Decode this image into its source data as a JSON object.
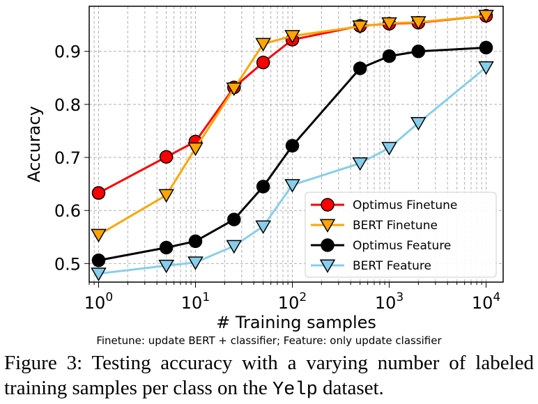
{
  "chart_data": {
    "type": "line",
    "xscale": "log",
    "xlabel": "# Training samples",
    "ylabel": "Accuracy",
    "xlim": [
      0.8,
      15000
    ],
    "ylim": [
      0.465,
      0.985
    ],
    "xticks": [
      {
        "value": 1,
        "base": "10",
        "exp": "0"
      },
      {
        "value": 10,
        "base": "10",
        "exp": "1"
      },
      {
        "value": 100,
        "base": "10",
        "exp": "2"
      },
      {
        "value": 1000,
        "base": "10",
        "exp": "3"
      },
      {
        "value": 10000,
        "base": "10",
        "exp": "4"
      }
    ],
    "yticks": [
      "0.5",
      "0.6",
      "0.7",
      "0.8",
      "0.9"
    ],
    "grid": true,
    "legend_position": "lower-right",
    "series": [
      {
        "name": "Optimus Finetune",
        "color": "#ff0000",
        "marker": "circle",
        "x": [
          1,
          5,
          10,
          25,
          50,
          100,
          500,
          1000,
          2000,
          10000
        ],
        "y": [
          0.633,
          0.701,
          0.73,
          0.832,
          0.879,
          0.922,
          0.948,
          0.952,
          0.954,
          0.967
        ]
      },
      {
        "name": "BERT Finetune",
        "color": "#ffa500",
        "marker": "triangle-down",
        "x": [
          1,
          5,
          10,
          25,
          50,
          100,
          500,
          1000,
          2000,
          10000
        ],
        "y": [
          0.554,
          0.629,
          0.717,
          0.83,
          0.914,
          0.929,
          0.947,
          0.953,
          0.955,
          0.967
        ]
      },
      {
        "name": "Optimus Feature",
        "color": "#000000",
        "marker": "circle",
        "x": [
          1,
          5,
          10,
          25,
          50,
          100,
          500,
          1000,
          2000,
          10000
        ],
        "y": [
          0.506,
          0.53,
          0.542,
          0.583,
          0.645,
          0.722,
          0.868,
          0.891,
          0.9,
          0.907
        ]
      },
      {
        "name": "BERT Feature",
        "color": "#87ceeb",
        "marker": "triangle-down",
        "x": [
          1,
          5,
          10,
          25,
          50,
          100,
          500,
          1000,
          2000,
          10000
        ],
        "y": [
          0.481,
          0.496,
          0.502,
          0.533,
          0.57,
          0.648,
          0.689,
          0.718,
          0.765,
          0.87
        ]
      }
    ]
  },
  "note": "Finetune: update BERT + classifier; Feature: only update classifier",
  "caption": {
    "prefix": "Figure 3:  Testing accuracy with a varying number of labeled training samples per class on the ",
    "dataset": "Yelp",
    "suffix": " dataset."
  }
}
